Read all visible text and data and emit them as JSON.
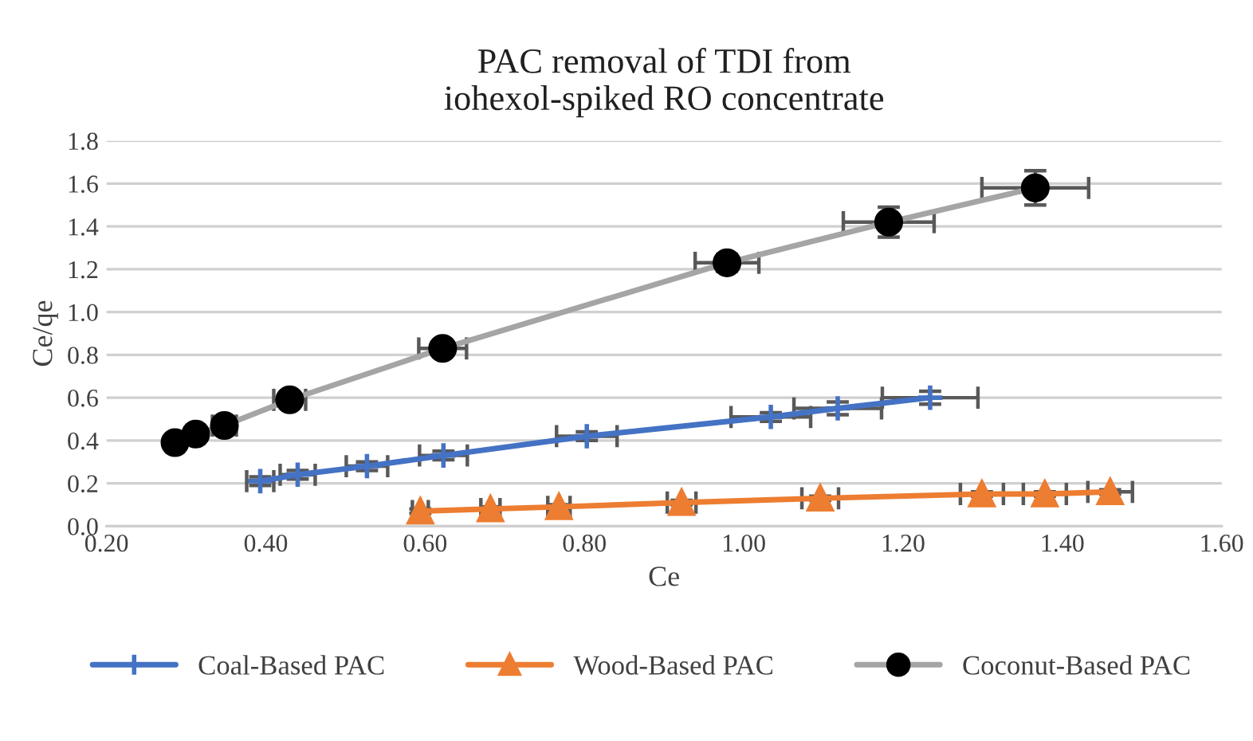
{
  "chart_data": {
    "type": "line",
    "title": "PAC removal of TDI from\niohexol-spiked RO concentrate",
    "xlabel": "Ce",
    "ylabel": "Ce/qe",
    "xlim": [
      0.2,
      1.6
    ],
    "xticks": [
      {
        "value": 0.2,
        "label": "0.20"
      },
      {
        "value": 0.4,
        "label": "0.40"
      },
      {
        "value": 0.6,
        "label": "0.60"
      },
      {
        "value": 0.8,
        "label": "0.80"
      },
      {
        "value": 1.0,
        "label": "1.00"
      },
      {
        "value": 1.2,
        "label": "1.20"
      },
      {
        "value": 1.4,
        "label": "1.40"
      },
      {
        "value": 1.6,
        "label": "1.60"
      }
    ],
    "ylim": [
      0,
      1.8
    ],
    "yticks": [
      {
        "value": 0,
        "label": "0.0"
      },
      {
        "value": 0.2,
        "label": "0.2"
      },
      {
        "value": 0.4,
        "label": "0.4"
      },
      {
        "value": 0.6,
        "label": "0.6"
      },
      {
        "value": 0.8,
        "label": "0.8"
      },
      {
        "value": 1.0,
        "label": "1.0"
      },
      {
        "value": 1.2,
        "label": "1.2"
      },
      {
        "value": 1.4,
        "label": "1.4"
      },
      {
        "value": 1.6,
        "label": "1.6"
      },
      {
        "value": 1.8,
        "label": "1.8"
      }
    ],
    "grid": "y",
    "legend": "bottom",
    "series": [
      {
        "name": "Coal-Based PAC",
        "color": "#4472c4",
        "marker": "cross",
        "x": [
          0.393,
          0.44,
          0.527,
          0.623,
          0.803,
          1.034,
          1.118,
          1.234
        ],
        "values": [
          0.21,
          0.24,
          0.28,
          0.33,
          0.42,
          0.51,
          0.55,
          0.6
        ],
        "xerrors": [
          0.017,
          0.022,
          0.026,
          0.03,
          0.038,
          0.05,
          0.055,
          0.06
        ],
        "errors": [
          0.02,
          0.02,
          0.02,
          0.02,
          0.02,
          0.02,
          0.03,
          0.03
        ]
      },
      {
        "name": "Wood-Based PAC",
        "color": "#ed7d31",
        "marker": "triangle",
        "x": [
          0.594,
          0.682,
          0.768,
          0.922,
          1.096,
          1.299,
          1.378,
          1.46
        ],
        "values": [
          0.07,
          0.08,
          0.09,
          0.11,
          0.13,
          0.15,
          0.15,
          0.16
        ],
        "xerrors": [
          0.01,
          0.012,
          0.014,
          0.018,
          0.023,
          0.027,
          0.027,
          0.028
        ],
        "errors": [
          0.01,
          0.01,
          0.01,
          0.01,
          0.01,
          0.01,
          0.01,
          0.01
        ]
      },
      {
        "name": "Coconut-Based PAC",
        "color": "#a5a5a5",
        "marker": "circle",
        "x": [
          0.286,
          0.312,
          0.348,
          0.43,
          0.622,
          0.979,
          1.182,
          1.366
        ],
        "values": [
          0.39,
          0.43,
          0.47,
          0.59,
          0.83,
          1.23,
          1.42,
          1.58
        ],
        "xerrors": [
          0.01,
          0.01,
          0.015,
          0.02,
          0.03,
          0.04,
          0.057,
          0.067
        ],
        "errors": [
          0.01,
          0.01,
          0.01,
          0.02,
          0.02,
          0.04,
          0.07,
          0.08
        ]
      }
    ]
  }
}
